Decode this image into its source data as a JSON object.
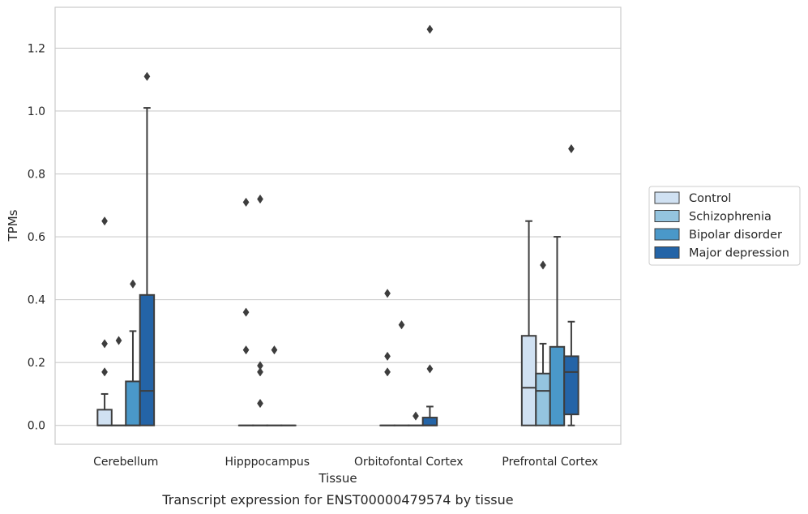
{
  "chart_data": {
    "type": "box",
    "title": "",
    "caption": "Transcript expression for ENST00000479574 by tissue",
    "xlabel": "Tissue",
    "ylabel": "TPMs",
    "ylim": [
      -0.06,
      1.33
    ],
    "yticks": [
      0.0,
      0.2,
      0.4,
      0.6,
      0.8,
      1.0,
      1.2
    ],
    "ytick_labels": [
      "0.0",
      "0.2",
      "0.4",
      "0.6",
      "0.8",
      "1.0",
      "1.2"
    ],
    "grid": "horizontal",
    "legend_position": "right",
    "categories": [
      "Cerebellum",
      "Hipppocampus",
      "Orbitofontal Cortex",
      "Prefrontal Cortex"
    ],
    "series": [
      {
        "name": "Control",
        "color": "#d0e1f2",
        "boxes": [
          {
            "q1": 0.0,
            "median": 0.0,
            "q3": 0.05,
            "whislo": 0.0,
            "whishi": 0.1,
            "fliers": [
              0.17,
              0.26,
              0.65
            ]
          },
          {
            "q1": 0.0,
            "median": 0.0,
            "q3": 0.0,
            "whislo": 0.0,
            "whishi": 0.0,
            "fliers": [
              0.24,
              0.36,
              0.71
            ]
          },
          {
            "q1": 0.0,
            "median": 0.0,
            "q3": 0.0,
            "whislo": 0.0,
            "whishi": 0.0,
            "fliers": [
              0.17,
              0.22,
              0.42
            ]
          },
          {
            "q1": 0.0,
            "median": 0.12,
            "q3": 0.285,
            "whislo": 0.0,
            "whishi": 0.65,
            "fliers": []
          }
        ]
      },
      {
        "name": "Schizophrenia",
        "color": "#94c4df",
        "boxes": [
          {
            "q1": 0.0,
            "median": 0.0,
            "q3": 0.0,
            "whislo": 0.0,
            "whishi": 0.0,
            "fliers": [
              0.27
            ]
          },
          {
            "q1": 0.0,
            "median": 0.0,
            "q3": 0.0,
            "whislo": 0.0,
            "whishi": 0.0,
            "fliers": [
              0.07,
              0.17,
              0.19,
              0.72
            ]
          },
          {
            "q1": 0.0,
            "median": 0.0,
            "q3": 0.0,
            "whislo": 0.0,
            "whishi": 0.0,
            "fliers": [
              0.32
            ]
          },
          {
            "q1": 0.0,
            "median": 0.11,
            "q3": 0.165,
            "whislo": 0.0,
            "whishi": 0.26,
            "fliers": [
              0.51
            ]
          }
        ]
      },
      {
        "name": "Bipolar disorder",
        "color": "#4a98c9",
        "boxes": [
          {
            "q1": 0.0,
            "median": 0.0,
            "q3": 0.14,
            "whislo": 0.0,
            "whishi": 0.3,
            "fliers": [
              0.45
            ]
          },
          {
            "q1": 0.0,
            "median": 0.0,
            "q3": 0.0,
            "whislo": 0.0,
            "whishi": 0.0,
            "fliers": [
              0.24
            ]
          },
          {
            "q1": 0.0,
            "median": 0.0,
            "q3": 0.0,
            "whislo": 0.0,
            "whishi": 0.0,
            "fliers": [
              0.03
            ]
          },
          {
            "q1": 0.0,
            "median": 0.0,
            "q3": 0.25,
            "whislo": 0.0,
            "whishi": 0.6,
            "fliers": []
          }
        ]
      },
      {
        "name": "Major depression",
        "color": "#2464a7",
        "boxes": [
          {
            "q1": 0.0,
            "median": 0.11,
            "q3": 0.415,
            "whislo": 0.0,
            "whishi": 1.01,
            "fliers": [
              1.11
            ]
          },
          {
            "q1": 0.0,
            "median": 0.0,
            "q3": 0.0,
            "whislo": 0.0,
            "whishi": 0.0,
            "fliers": []
          },
          {
            "q1": 0.0,
            "median": 0.0,
            "q3": 0.025,
            "whislo": 0.0,
            "whishi": 0.06,
            "fliers": [
              0.18,
              1.26
            ]
          },
          {
            "q1": 0.035,
            "median": 0.17,
            "q3": 0.22,
            "whislo": 0.0,
            "whishi": 0.33,
            "fliers": [
              0.88
            ]
          }
        ]
      }
    ]
  }
}
